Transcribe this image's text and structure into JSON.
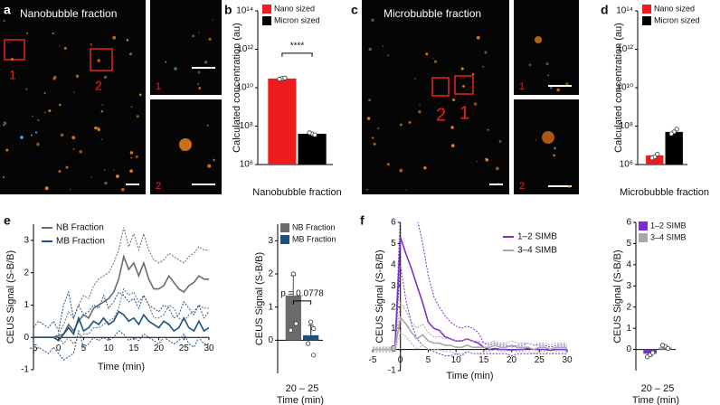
{
  "images": [
    {
      "panel": "a",
      "title": "Nanobubble fraction",
      "box_labels": [
        "1",
        "2"
      ],
      "inset_labels": [
        "1",
        "2"
      ]
    },
    {
      "panel": "c",
      "title": "Microbubble fraction",
      "box_labels": [
        "2",
        "1"
      ],
      "inset_labels": [
        "1",
        "2"
      ]
    }
  ],
  "chart_data": [
    {
      "type": "bar",
      "panel": "b",
      "log": true,
      "y_label": "Calculated concentration (au)",
      "categories": [
        "Nanobubble fraction"
      ],
      "series": [
        {
          "name": "Nano sized",
          "color": "#ee1c1c",
          "values": [
            30000000000
          ],
          "points": [
            30000000000,
            32000000000,
            28000000000
          ]
        },
        {
          "name": "Micron sized",
          "color": "#000000",
          "values": [
            40000000
          ],
          "points": [
            40000000,
            35000000,
            45000000
          ]
        }
      ],
      "annotation": "****",
      "ylim": [
        1000000,
        100000000000000
      ],
      "yticks": [
        {
          "value": 1000000,
          "label": "10⁶"
        },
        {
          "value": 100000000,
          "label": "10⁸"
        },
        {
          "value": 10000000000,
          "label": "10¹⁰"
        },
        {
          "value": 1000000000000,
          "label": "10¹²"
        },
        {
          "value": 100000000000000,
          "label": "10¹⁴"
        }
      ]
    },
    {
      "type": "bar",
      "panel": "d",
      "log": true,
      "y_label": "Calculated concentration (au)",
      "categories": [
        "Microbubble fraction"
      ],
      "series": [
        {
          "name": "Nano sized",
          "color": "#ee1c1c",
          "values": [
            3000000
          ],
          "points": [
            2500000,
            3500000,
            2200000
          ]
        },
        {
          "name": "Micron sized",
          "color": "#000000",
          "values": [
            50000000
          ],
          "points": [
            50000000,
            70000000,
            40000000
          ]
        }
      ],
      "ylim": [
        1000000,
        100000000000000
      ],
      "yticks": [
        {
          "value": 1000000,
          "label": "10⁶"
        },
        {
          "value": 100000000,
          "label": "10⁸"
        },
        {
          "value": 10000000000,
          "label": "10¹⁰"
        },
        {
          "value": 1000000000000,
          "label": "10¹²"
        },
        {
          "value": 100000000000000,
          "label": "10¹⁴"
        }
      ]
    },
    {
      "type": "line",
      "panel": "e",
      "y_label": "CEUS Signal (S-B/B)",
      "x_label": "Time (min)",
      "x": [
        -5,
        -4,
        -3,
        -2,
        -1,
        0,
        1,
        2,
        3,
        4,
        5,
        6,
        7,
        8,
        9,
        10,
        11,
        12,
        13,
        14,
        15,
        16,
        17,
        18,
        19,
        20,
        21,
        22,
        23,
        24,
        25,
        26,
        27,
        28,
        29,
        30
      ],
      "series": [
        {
          "name": "NB Fraction",
          "color": "#6b6b6b",
          "values": [
            0,
            0,
            0,
            0,
            0,
            0.05,
            0.1,
            0.4,
            0.2,
            0.5,
            0.7,
            0.6,
            0.9,
            1.0,
            1.1,
            1.2,
            1.4,
            1.8,
            2.5,
            2.1,
            2.3,
            1.9,
            2.3,
            1.8,
            1.5,
            1.5,
            1.6,
            1.9,
            1.7,
            1.5,
            1.4,
            1.6,
            1.7,
            1.9,
            1.8,
            1.8
          ],
          "upper": [
            0,
            0,
            0,
            0,
            0,
            0.1,
            0.4,
            0.8,
            0.6,
            1.0,
            1.3,
            1.2,
            1.6,
            1.8,
            1.9,
            2.0,
            2.3,
            2.7,
            3.4,
            2.8,
            3.2,
            2.7,
            3.2,
            2.7,
            2.4,
            2.3,
            2.4,
            2.6,
            2.5,
            2.4,
            2.3,
            2.5,
            2.6,
            2.8,
            2.7,
            2.7
          ],
          "lower": [
            0,
            0,
            0,
            0,
            0,
            0,
            -0.2,
            0,
            -0.2,
            0,
            0.1,
            0.1,
            0.3,
            0.3,
            0.4,
            0.5,
            0.6,
            0.9,
            1.5,
            1.3,
            1.4,
            1.1,
            1.3,
            1.0,
            0.6,
            0.6,
            0.7,
            1.0,
            0.9,
            0.6,
            0.5,
            0.7,
            0.8,
            1.0,
            0.9,
            0.9
          ]
        },
        {
          "name": "MB Fraction",
          "color": "#1d4f80",
          "values": [
            0,
            0,
            0,
            0,
            0,
            -0.1,
            0.1,
            0.3,
            0.1,
            0.6,
            0.2,
            0.3,
            0.5,
            0.4,
            0.6,
            0.4,
            0.5,
            0.8,
            0.7,
            0.5,
            0.6,
            0.4,
            0.7,
            0.5,
            0.4,
            0.3,
            0.5,
            0.4,
            0.2,
            0.3,
            0.6,
            0.3,
            0.2,
            0.5,
            0.2,
            0.3
          ],
          "upper": [
            0.3,
            0.5,
            0.4,
            0.3,
            0.5,
            0.2,
            1.0,
            1.4,
            0.6,
            1.0,
            0.7,
            0.8,
            1.0,
            0.9,
            1.3,
            0.9,
            1.1,
            1.4,
            1.3,
            1.1,
            1.2,
            0.9,
            1.3,
            1.0,
            0.9,
            0.8,
            1.0,
            0.9,
            0.6,
            0.7,
            1.1,
            0.9,
            0.7,
            1.0,
            0.6,
            0.8
          ],
          "lower": [
            -0.5,
            -0.3,
            -0.4,
            -0.5,
            -0.3,
            -0.5,
            -0.7,
            -0.6,
            -0.5,
            0.2,
            -0.3,
            -0.2,
            0,
            -0.1,
            0,
            -0.1,
            0,
            0.2,
            0.1,
            -0.1,
            0,
            -0.1,
            0.1,
            0,
            -0.1,
            -0.2,
            0,
            -0.1,
            -0.2,
            -0.1,
            0.1,
            -0.2,
            -0.3,
            0,
            -0.2,
            -0.2
          ]
        }
      ],
      "xlim": [
        -5,
        30
      ],
      "xticks": [
        -5,
        0,
        5,
        10,
        15,
        20,
        25,
        30
      ],
      "ylim": [
        -1,
        3.5
      ],
      "yticks": [
        -1,
        0,
        1,
        2,
        3
      ]
    },
    {
      "type": "bar",
      "y_label": "CEUS Signal (S-B/B)",
      "x_label": "Time (min)",
      "categories": [
        "20 – 25"
      ],
      "series": [
        {
          "name": "NB Fraction",
          "color": "#6b6b6b",
          "values": [
            1.35
          ],
          "errors": [
            0.6
          ],
          "points": [
            2.0,
            0.5,
            0.3
          ]
        },
        {
          "name": "MB Fraction",
          "color": "#1d4f80",
          "values": [
            0.15
          ],
          "errors": [
            0.3
          ],
          "points": [
            0.55,
            0.35,
            -0.1,
            -0.45
          ]
        }
      ],
      "annotation": "p = 0.0778",
      "ylim": [
        -1,
        3.5
      ],
      "yticks": [
        0,
        1,
        2,
        3
      ]
    },
    {
      "type": "line",
      "panel": "f",
      "y_label": "CEUS Signal (S-B/B)",
      "x_label": "Time (min)",
      "x": [
        -5,
        -4,
        -3,
        -2,
        -1,
        0,
        1,
        2,
        3,
        4,
        5,
        6,
        7,
        8,
        9,
        10,
        11,
        12,
        13,
        14,
        15,
        16,
        17,
        18,
        19,
        20,
        21,
        22,
        23,
        24,
        25,
        26,
        27,
        28,
        29,
        30
      ],
      "series": [
        {
          "name": "1–2 SIMB",
          "color": "#7b2fd0",
          "values": [
            0,
            0,
            0,
            0,
            0,
            5.3,
            4.5,
            3.8,
            3.0,
            2.2,
            1.3,
            1.0,
            0.9,
            0.6,
            0.5,
            0.4,
            0.4,
            0.5,
            0.4,
            0.3,
            0.1,
            0,
            0.05,
            0,
            0,
            -0.05,
            0,
            0,
            0.05,
            0,
            0,
            0,
            -0.05,
            0,
            0,
            0
          ],
          "upper": [
            0.1,
            0.1,
            0.1,
            0.1,
            0.1,
            6.5,
            6.8,
            6.5,
            6.2,
            5.0,
            3.5,
            2.5,
            2.0,
            1.6,
            1.3,
            1.1,
            1.0,
            1.1,
            1.0,
            0.8,
            0.3,
            0.2,
            0.3,
            0.2,
            0.2,
            0.1,
            0.2,
            0.2,
            0.3,
            0.2,
            0.2,
            0.2,
            0.1,
            0.2,
            0.2,
            0.2
          ],
          "lower": [
            -0.1,
            -0.1,
            -0.1,
            -0.1,
            -0.1,
            4.0,
            2.3,
            1.2,
            0.5,
            0.2,
            0,
            -0.1,
            -0.2,
            -0.3,
            -0.3,
            -0.2,
            -0.3,
            -0.1,
            -0.2,
            -0.2,
            -0.2,
            -0.2,
            -0.2,
            -0.2,
            -0.2,
            -0.3,
            -0.2,
            -0.2,
            -0.2,
            -0.2,
            -0.2,
            -0.2,
            -0.2,
            -0.2,
            -0.2,
            -0.2
          ]
        },
        {
          "name": "3–4 SIMB",
          "color": "#a8a8a8",
          "values": [
            0,
            0,
            0,
            0,
            0,
            1.5,
            1.2,
            0.8,
            0.5,
            0.7,
            0.4,
            0.3,
            0.3,
            0.2,
            0.2,
            0.1,
            0.1,
            0.2,
            0.1,
            0.1,
            0.1,
            0.1,
            0.2,
            0.1,
            0.1,
            0.2,
            0.1,
            0.1,
            0.1,
            0,
            0.1,
            0.1,
            0,
            0.1,
            0.1,
            0.1
          ],
          "upper": [
            0.1,
            0.1,
            0.1,
            0.1,
            0.1,
            2.2,
            1.8,
            1.3,
            1.0,
            1.2,
            0.8,
            0.6,
            0.6,
            0.5,
            0.5,
            0.4,
            0.4,
            0.5,
            0.4,
            0.4,
            0.3,
            0.3,
            0.4,
            0.3,
            0.3,
            0.4,
            0.3,
            0.3,
            0.3,
            0.2,
            0.3,
            0.3,
            0.2,
            0.3,
            0.3,
            0.3
          ],
          "lower": [
            -0.1,
            -0.1,
            -0.1,
            -0.1,
            -0.1,
            0.8,
            0.6,
            0.3,
            0,
            0.2,
            0,
            0,
            0,
            -0.1,
            -0.1,
            -0.2,
            -0.2,
            -0.1,
            -0.2,
            -0.2,
            -0.1,
            -0.1,
            0,
            -0.1,
            -0.1,
            0,
            -0.1,
            -0.1,
            -0.1,
            -0.2,
            -0.1,
            -0.1,
            -0.2,
            -0.1,
            -0.1,
            -0.1
          ]
        }
      ],
      "xlim": [
        -5,
        30
      ],
      "xticks": [
        -5,
        0,
        5,
        10,
        15,
        20,
        25,
        30
      ],
      "ylim": [
        -1,
        6
      ],
      "yticks": [
        -1,
        0,
        1,
        2,
        3,
        4,
        5,
        6
      ]
    },
    {
      "type": "bar",
      "y_label": "CEUS Signal (S-B/B)",
      "x_label": "Time (min)",
      "categories": [
        "20 – 25"
      ],
      "series": [
        {
          "name": "1–2 SIMB",
          "color": "#7b2fd0",
          "values": [
            -0.2
          ],
          "errors": [
            0.1
          ],
          "points": [
            -0.25,
            -0.15,
            -0.35
          ]
        },
        {
          "name": "3–4 SIMB",
          "color": "#a8a8a8",
          "values": [
            0.1
          ],
          "errors": [
            0.07
          ],
          "points": [
            0.15,
            0.05,
            0.2
          ]
        }
      ],
      "ylim": [
        -1,
        6
      ],
      "yticks": [
        0,
        1,
        2,
        3,
        4,
        5,
        6
      ]
    }
  ]
}
